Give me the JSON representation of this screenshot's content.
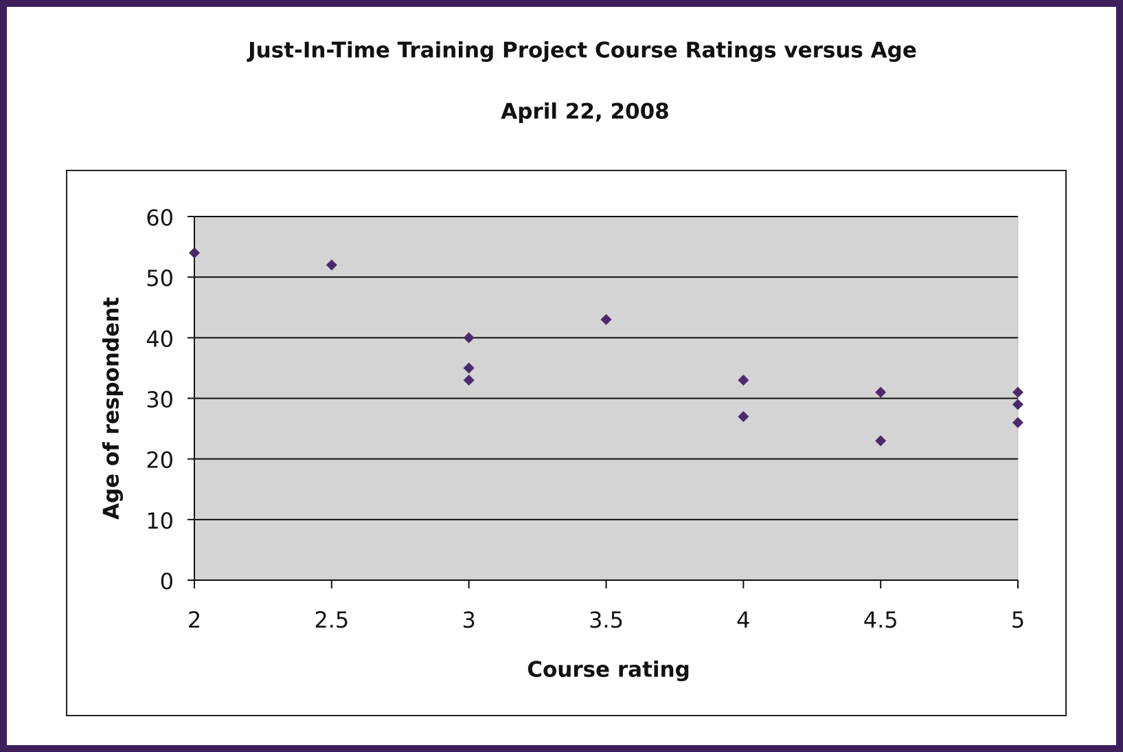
{
  "chart_data": {
    "type": "scatter",
    "title": "Just-In-Time Training Project Course Ratings versus Age",
    "subtitle": "April 22, 2008",
    "x_label": "Course rating",
    "y_label": "Age of respondent",
    "x": [
      2,
      2.5,
      3,
      3,
      3,
      3.5,
      4,
      4,
      4.5,
      4.5,
      5,
      5,
      5
    ],
    "values": [
      54,
      52,
      40,
      35,
      33,
      43,
      33,
      27,
      31,
      23,
      31,
      29,
      26
    ],
    "color": "#4b2a6b",
    "xlim": [
      2,
      5
    ],
    "xticks": [
      2,
      2.5,
      3,
      3.5,
      4,
      4.5,
      5
    ],
    "ylim": [
      0,
      60
    ],
    "yticks": [
      0,
      10,
      20,
      30,
      40,
      50,
      60
    ],
    "grid": true
  }
}
